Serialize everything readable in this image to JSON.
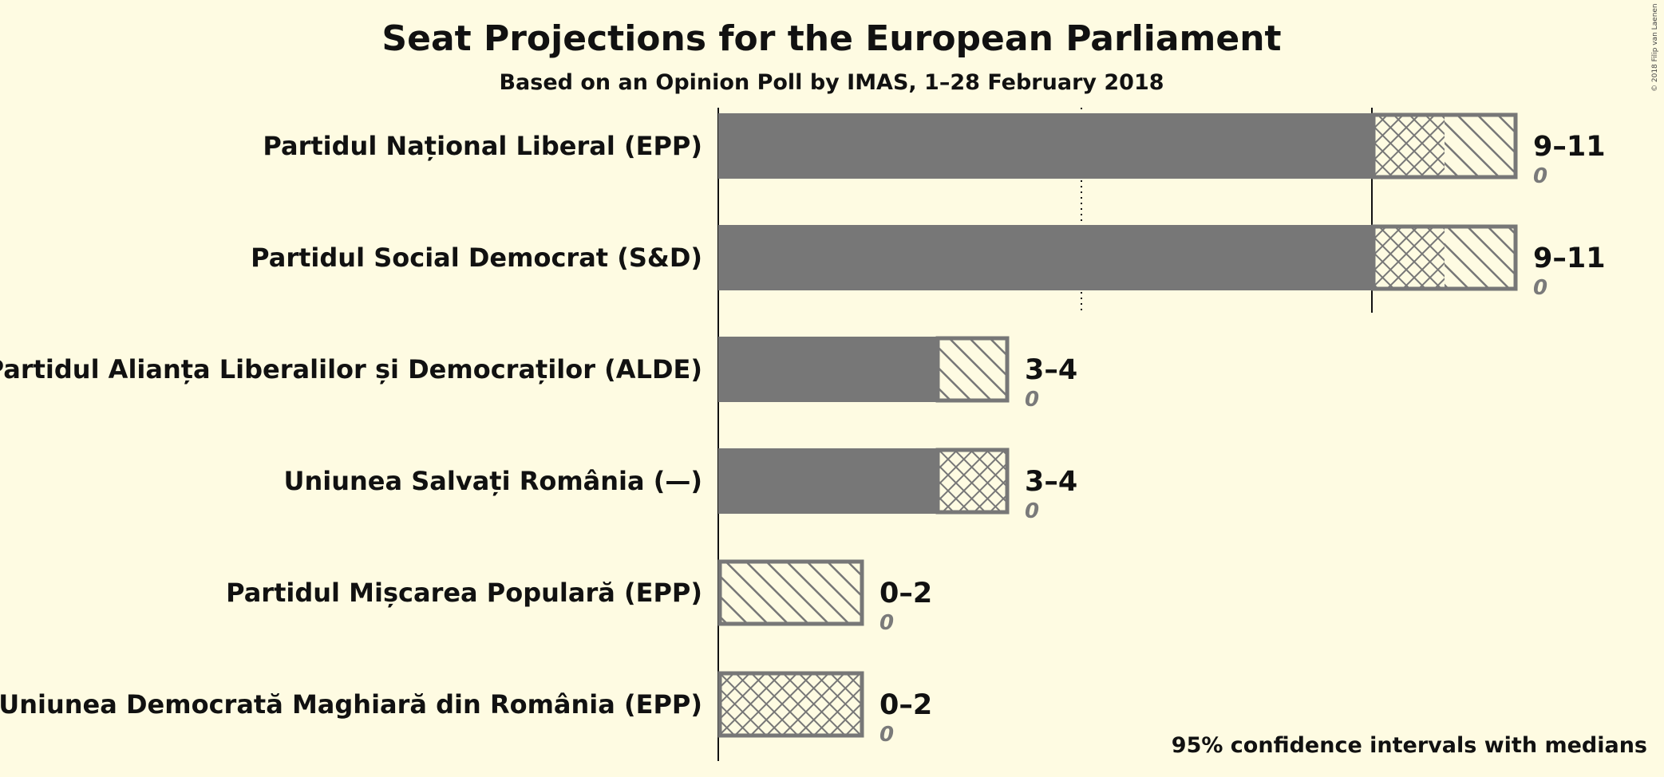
{
  "chart_data": {
    "type": "bar",
    "orientation": "horizontal",
    "title": "Seat Projections for the European Parliament",
    "subtitle": "Based on an Opinion Poll by IMAS, 1–28 February 2018",
    "copyright": "© 2018 Filip van Laenen",
    "note": "95% confidence intervals with medians",
    "majority_line": 9,
    "dotted_line": 5,
    "xlim": [
      0,
      12
    ],
    "parties": [
      {
        "name": "Partidul Național Liberal (EPP)",
        "low": 9,
        "median": 10,
        "high": 11,
        "range_label": "9–11",
        "last_result": "0"
      },
      {
        "name": "Partidul Social Democrat (S&D)",
        "low": 9,
        "median": 10,
        "high": 11,
        "range_label": "9–11",
        "last_result": "0"
      },
      {
        "name": "Partidul Alianța Liberalilor și Democraților (ALDE)",
        "low": 3,
        "median": 3,
        "high": 4,
        "range_label": "3–4",
        "last_result": "0"
      },
      {
        "name": "Uniunea Salvați România (—)",
        "low": 3,
        "median": 4,
        "high": 4,
        "range_label": "3–4",
        "last_result": "0"
      },
      {
        "name": "Partidul Mișcarea Populară (EPP)",
        "low": 0,
        "median": 0,
        "high": 2,
        "range_label": "0–2",
        "last_result": "0"
      },
      {
        "name": "Uniunea Democrată Maghiară din România (EPP)",
        "low": 0,
        "median": 2,
        "high": 2,
        "range_label": "0–2",
        "last_result": "0"
      }
    ],
    "colors": {
      "background": "#fefbe2",
      "bar": "#777777",
      "hatch_light": "#fefbe2",
      "text": "#111111",
      "last_result": "#7a7a7a"
    }
  }
}
